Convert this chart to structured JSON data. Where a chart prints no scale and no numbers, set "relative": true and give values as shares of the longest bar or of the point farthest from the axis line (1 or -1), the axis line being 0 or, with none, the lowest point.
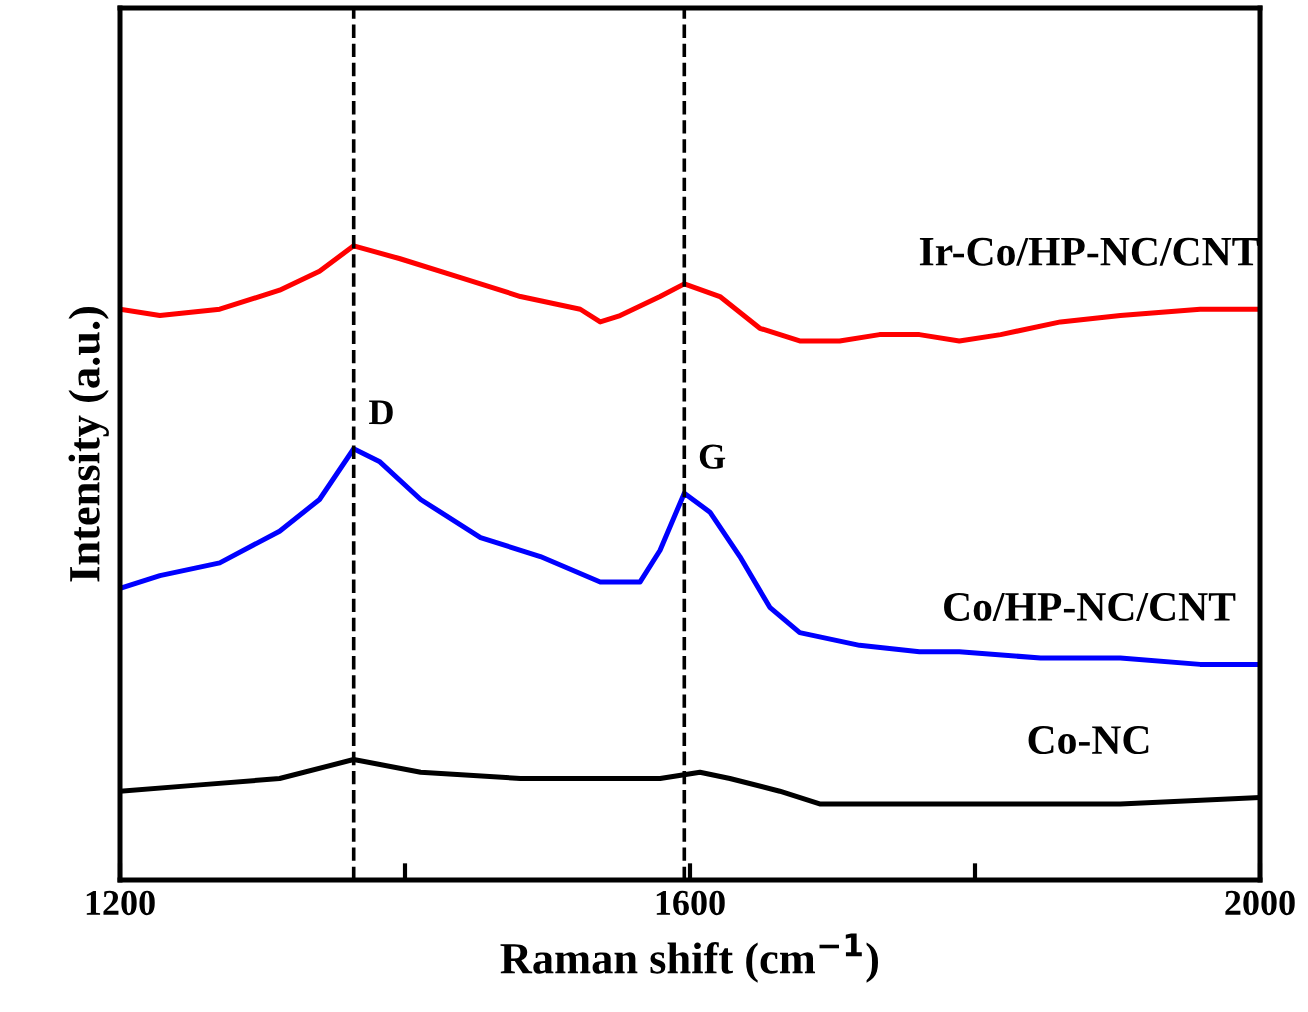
{
  "chart_data": {
    "type": "line",
    "relative": true,
    "xlabel": "Raman shift (cm$^{−1}$)",
    "ylabel": "Intensity (a.u.)",
    "xlim": [
      1200,
      2000
    ],
    "xticks": [
      1200,
      {
        "value": 1400,
        "label": null
      },
      1600,
      {
        "value": 1800,
        "label": null
      },
      2000
    ],
    "grid": false,
    "legend": false,
    "tick_labels": "x",
    "line_style": "solid",
    "marker": "none",
    "series": [
      {
        "name": "Ir-Co/HP-NC/CNT",
        "color": "#ff0000",
        "x": [
          1200,
          1228,
          1270,
          1312,
          1340,
          1364,
          1396,
          1439,
          1481,
          1523,
          1537,
          1551,
          1579,
          1596,
          1621,
          1649,
          1677,
          1705,
          1733,
          1761,
          1789,
          1818,
          1860,
          1902,
          1958,
          2000
        ],
        "values": [
          0.9,
          0.89,
          0.9,
          0.93,
          0.96,
          1.0,
          0.98,
          0.95,
          0.92,
          0.9,
          0.88,
          0.89,
          0.92,
          0.94,
          0.92,
          0.87,
          0.85,
          0.85,
          0.86,
          0.86,
          0.85,
          0.86,
          0.88,
          0.89,
          0.9,
          0.9
        ]
      },
      {
        "name": "Co/HP-NC/CNT",
        "color": "#0000ff",
        "x": [
          1200,
          1228,
          1270,
          1312,
          1340,
          1364,
          1382,
          1411,
          1453,
          1495,
          1537,
          1565,
          1579,
          1596,
          1614,
          1635,
          1656,
          1677,
          1719,
          1761,
          1789,
          1846,
          1902,
          1958,
          2000
        ],
        "values": [
          0.46,
          0.48,
          0.5,
          0.55,
          0.6,
          0.68,
          0.66,
          0.6,
          0.54,
          0.51,
          0.47,
          0.47,
          0.52,
          0.61,
          0.58,
          0.51,
          0.43,
          0.39,
          0.37,
          0.36,
          0.36,
          0.35,
          0.35,
          0.34,
          0.34
        ]
      },
      {
        "name": "Co-NC",
        "color": "#000000",
        "x": [
          1200,
          1256,
          1312,
          1364,
          1411,
          1481,
          1537,
          1579,
          1607,
          1628,
          1663,
          1691,
          1747,
          1818,
          1902,
          2000
        ],
        "values": [
          0.14,
          0.15,
          0.16,
          0.19,
          0.17,
          0.16,
          0.16,
          0.16,
          0.17,
          0.16,
          0.14,
          0.12,
          0.12,
          0.12,
          0.12,
          0.13
        ]
      }
    ],
    "ref_lines": [
      {
        "axis": "x",
        "value": 1364,
        "color": "#000000",
        "line_style": "dashed"
      },
      {
        "axis": "x",
        "value": 1596,
        "color": "#000000",
        "line_style": "dashed"
      }
    ],
    "annotations": [
      {
        "text": "D",
        "x": 1364,
        "y": 0.68
      },
      {
        "text": "G",
        "x": 1596,
        "y": 0.61
      }
    ]
  }
}
